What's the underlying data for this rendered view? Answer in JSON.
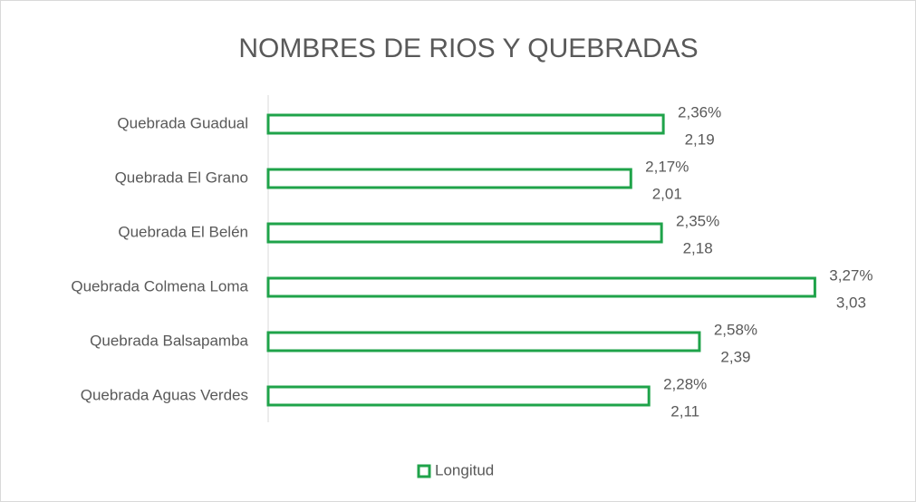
{
  "chart_data": {
    "type": "bar",
    "orientation": "horizontal",
    "title": "NOMBRES DE RIOS Y QUEBRADAS",
    "categories": [
      "Quebrada Guadual",
      "Quebrada El Grano",
      "Quebrada El Belén",
      "Quebrada Colmena Loma",
      "Quebrada Balsapamba",
      "Quebrada Aguas Verdes"
    ],
    "series": [
      {
        "name": "Longitud",
        "color": "#1fa34a",
        "values": [
          2.19,
          2.01,
          2.18,
          3.03,
          2.39,
          2.11
        ],
        "value_labels": [
          "2,19",
          "2,01",
          "2,18",
          "3,03",
          "2,39",
          "2,11"
        ],
        "percent_labels": [
          "2,36%",
          "2,17%",
          "2,35%",
          "3,27%",
          "2,58%",
          "2,28%"
        ]
      }
    ],
    "xlim": [
      0,
      3.5
    ],
    "legend": "bottom"
  }
}
